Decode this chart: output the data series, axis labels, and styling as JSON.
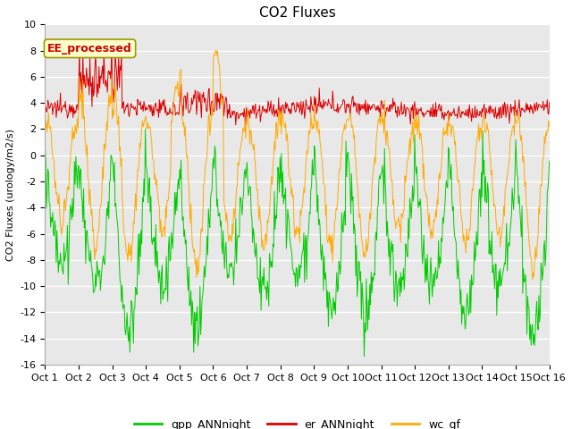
{
  "title": "CO2 Fluxes",
  "ylabel": "CO2 Fluxes (urology/m2/s)",
  "xlabels": [
    "Oct 1",
    "Oct 2",
    "Oct 3",
    "Oct 4",
    "Oct 5",
    "Oct 6",
    "Oct 7",
    "Oct 8",
    "Oct 9",
    "Oct 10",
    "Oct 11",
    "Oct 12",
    "Oct 13",
    "Oct 14",
    "Oct 15",
    "Oct 16"
  ],
  "ylim": [
    -16,
    10
  ],
  "yticks": [
    -16,
    -14,
    -12,
    -10,
    -8,
    -6,
    -4,
    -2,
    0,
    2,
    4,
    6,
    8,
    10
  ],
  "n_days": 15,
  "n_per_day": 48,
  "colors": {
    "gpp": "#00cc00",
    "er": "#dd0000",
    "wc": "#ffaa00"
  },
  "legend_labels": [
    "gpp_ANNnight",
    "er_ANNnight",
    "wc_gf"
  ],
  "annotation_text": "EE_processed",
  "annotation_color": "#cc0000",
  "annotation_bg": "#ffffcc",
  "plot_bg": "#e8e8e8",
  "grid_color": "#ffffff",
  "title_fontsize": 11,
  "axis_fontsize": 8,
  "legend_fontsize": 9
}
